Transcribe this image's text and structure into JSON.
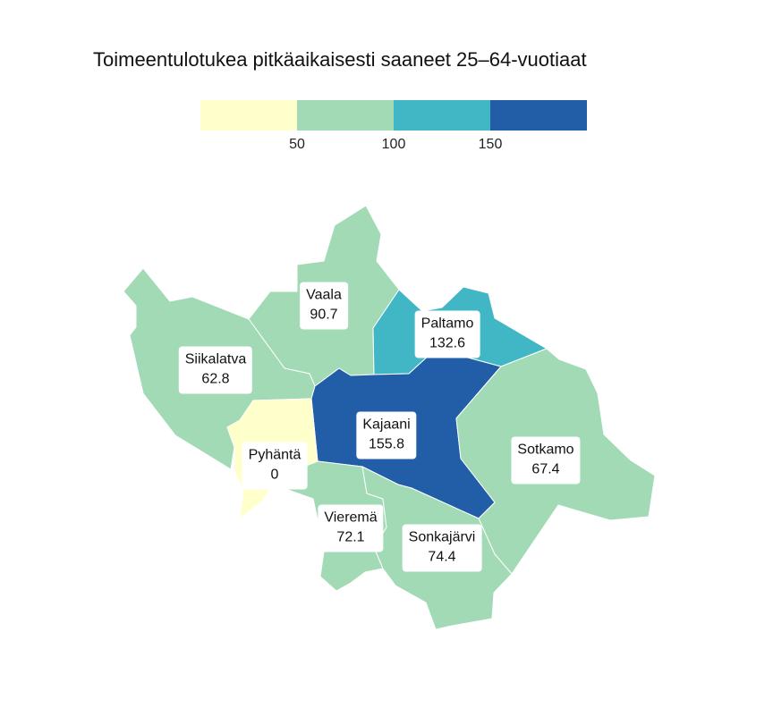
{
  "title": "Toimeentulotukea pitkäaikaisesti saaneet 25–64-vuotiaat",
  "legend": {
    "colors": [
      "#ffffcc",
      "#a1dab4",
      "#41b6c4",
      "#225ea8"
    ],
    "ticks": [
      "50",
      "100",
      "150"
    ]
  },
  "regions": [
    {
      "name": "Vaala",
      "value": "90.7",
      "color": "#a1dab4"
    },
    {
      "name": "Paltamo",
      "value": "132.6",
      "color": "#41b6c4"
    },
    {
      "name": "Siikalatva",
      "value": "62.8",
      "color": "#a1dab4"
    },
    {
      "name": "Kajaani",
      "value": "155.8",
      "color": "#225ea8"
    },
    {
      "name": "Pyhäntä",
      "value": "0",
      "color": "#ffffcc"
    },
    {
      "name": "Sotkamo",
      "value": "67.4",
      "color": "#a1dab4"
    },
    {
      "name": "Vieremä",
      "value": "72.1",
      "color": "#a1dab4"
    },
    {
      "name": "Sonkajärvi",
      "value": "74.4",
      "color": "#a1dab4"
    }
  ]
}
